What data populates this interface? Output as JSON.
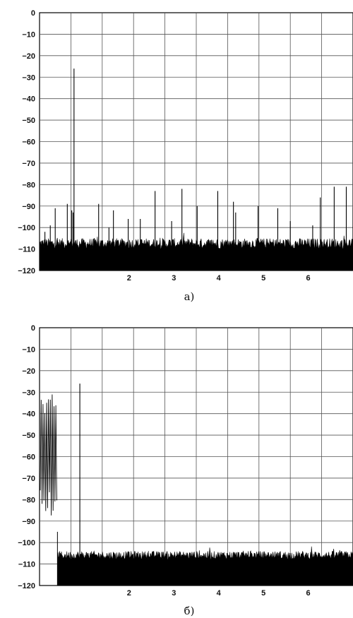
{
  "chart_data": [
    {
      "type": "line",
      "caption": "а)",
      "title": "",
      "xlabel": "",
      "ylabel": "",
      "ylim": [
        -120,
        0
      ],
      "yticks": [
        0,
        -10,
        -20,
        -30,
        -40,
        -50,
        -60,
        -70,
        -80,
        -90,
        -100,
        -110,
        -120
      ],
      "xlim": [
        0,
        7
      ],
      "xtick_labels": [
        "2",
        "3",
        "4",
        "5",
        "6"
      ],
      "xtick_values": [
        2,
        3,
        4,
        5,
        6
      ],
      "grid": true,
      "series": [
        {
          "noise_floor": [
            -110,
            -105
          ],
          "spurs": [
            {
              "x": 0.77,
              "y": -26
            },
            {
              "x": 0.72,
              "y": -92
            },
            {
              "x": 0.75,
              "y": -93
            },
            {
              "x": 0.62,
              "y": -89
            },
            {
              "x": 0.35,
              "y": -91
            },
            {
              "x": 0.24,
              "y": -99
            },
            {
              "x": 0.12,
              "y": -102
            },
            {
              "x": 1.32,
              "y": -89
            },
            {
              "x": 1.65,
              "y": -92
            },
            {
              "x": 1.55,
              "y": -100
            },
            {
              "x": 2.58,
              "y": -83
            },
            {
              "x": 2.25,
              "y": -96
            },
            {
              "x": 1.98,
              "y": -96
            },
            {
              "x": 3.18,
              "y": -82
            },
            {
              "x": 2.95,
              "y": -97
            },
            {
              "x": 3.52,
              "y": -90
            },
            {
              "x": 3.98,
              "y": -83
            },
            {
              "x": 4.33,
              "y": -88
            },
            {
              "x": 4.38,
              "y": -93
            },
            {
              "x": 4.88,
              "y": -90
            },
            {
              "x": 5.32,
              "y": -91
            },
            {
              "x": 5.6,
              "y": -97
            },
            {
              "x": 6.27,
              "y": -86
            },
            {
              "x": 6.58,
              "y": -81
            },
            {
              "x": 6.85,
              "y": -81
            },
            {
              "x": 6.1,
              "y": -99
            },
            {
              "x": 7.0,
              "y": -91
            }
          ]
        }
      ]
    },
    {
      "type": "line",
      "caption": "б)",
      "title": "",
      "xlabel": "",
      "ylabel": "",
      "ylim": [
        -120,
        0
      ],
      "yticks": [
        0,
        -10,
        -20,
        -30,
        -40,
        -50,
        -60,
        -70,
        -80,
        -90,
        -100,
        -110,
        -120
      ],
      "xlim": [
        0,
        7
      ],
      "xtick_labels": [
        "2",
        "3",
        "4",
        "5",
        "6"
      ],
      "xtick_values": [
        2,
        3,
        4,
        5,
        6
      ],
      "grid": true,
      "series": [
        {
          "noise_floor": [
            -108,
            -104
          ],
          "band": {
            "x_start": 0.0,
            "x_end": 0.4,
            "top": -40,
            "bottom": -92
          },
          "floor_start_x": 0.4,
          "spurs": [
            {
              "x": 0.9,
              "y": -26
            }
          ]
        }
      ]
    }
  ]
}
